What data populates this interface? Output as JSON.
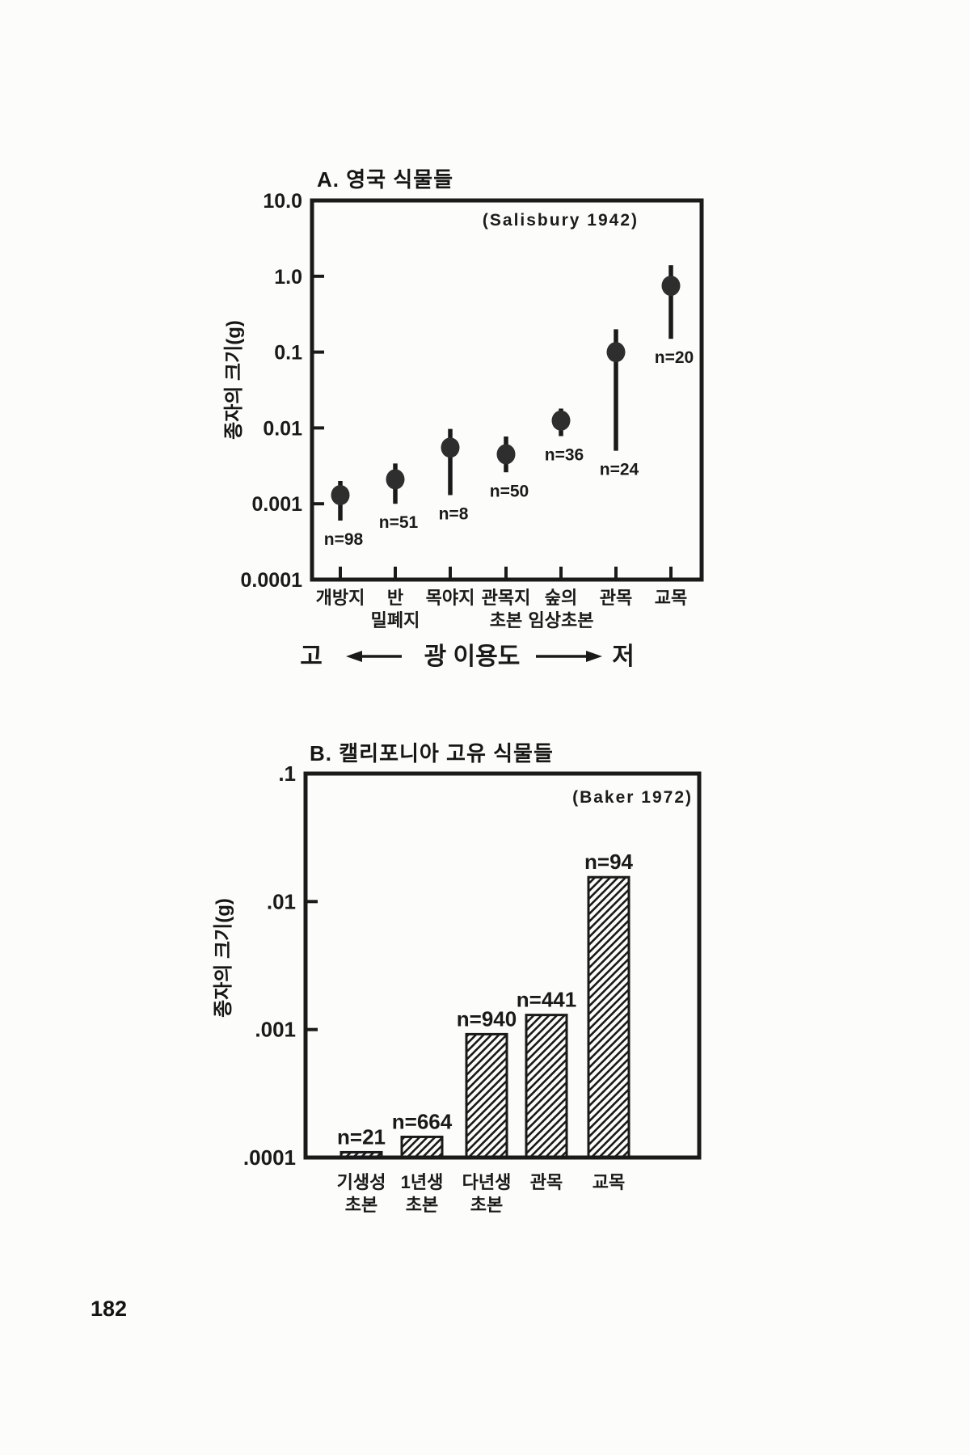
{
  "page": {
    "number": "182",
    "paper_color": "#fcfcfa",
    "ink_color": "#1a1a1a"
  },
  "chart_data": [
    {
      "type": "scatter",
      "panel": "A",
      "title": "A. 영국 식물들",
      "source": "(Salisbury 1942)",
      "ylabel": "종자의 크기(g)",
      "ylim": [
        0.0001,
        10
      ],
      "yscale": "log",
      "grid": false,
      "yticks": [
        {
          "label": "10.0",
          "value": 10
        },
        {
          "label": "1.0",
          "value": 1
        },
        {
          "label": "0.1",
          "value": 0.1
        },
        {
          "label": "0.01",
          "value": 0.01
        },
        {
          "label": "0.001",
          "value": 0.001
        },
        {
          "label": "0.0001",
          "value": 0.0001
        }
      ],
      "categories": [
        [
          "개방지"
        ],
        [
          "반",
          "밀폐지"
        ],
        [
          "목야지"
        ],
        [
          "관목지",
          "초본"
        ],
        [
          "숲의",
          "임상초본"
        ],
        [
          "관목"
        ],
        [
          "교목"
        ]
      ],
      "points": [
        {
          "category": "개방지",
          "n": "n=98",
          "value": 0.0013,
          "low": 0.0006,
          "high": 0.002
        },
        {
          "category": "반 밀폐지",
          "n": "n=51",
          "value": 0.0021,
          "low": 0.001,
          "high": 0.0034
        },
        {
          "category": "목야지",
          "n": "n=8",
          "value": 0.0055,
          "low": 0.0013,
          "high": 0.0097
        },
        {
          "category": "관목지 초본",
          "n": "n=50",
          "value": 0.0045,
          "low": 0.0026,
          "high": 0.0077
        },
        {
          "category": "숲의 임상초본",
          "n": "n=36",
          "value": 0.0125,
          "low": 0.0078,
          "high": 0.018
        },
        {
          "category": "관목",
          "n": "n=24",
          "value": 0.1,
          "low": 0.005,
          "high": 0.2
        },
        {
          "category": "교목",
          "n": "n=20",
          "value": 0.75,
          "low": 0.15,
          "high": 1.4
        }
      ],
      "x_annotation": {
        "high_label": "고",
        "axis_label": "광 이용도",
        "low_label": "저"
      }
    },
    {
      "type": "bar",
      "panel": "B",
      "title": "B. 캘리포니아 고유 식물들",
      "source": "(Baker 1972)",
      "ylabel": "종자의 크기(g)",
      "ylim": [
        0.0001,
        0.1
      ],
      "yscale": "log",
      "grid": false,
      "yticks": [
        {
          "label": ".1",
          "value": 0.1
        },
        {
          "label": ".01",
          "value": 0.01
        },
        {
          "label": ".001",
          "value": 0.001
        },
        {
          "label": ".0001",
          "value": 0.0001
        }
      ],
      "categories": [
        [
          "기생성",
          "초본"
        ],
        [
          "1년생",
          "초본"
        ],
        [
          "다년생",
          "초본"
        ],
        [
          "관목"
        ],
        [
          "교목"
        ]
      ],
      "bars": [
        {
          "category": "기생성 초본",
          "n": "n=21",
          "value": 0.00011
        },
        {
          "category": "1년생 초본",
          "n": "n=664",
          "value": 0.000145
        },
        {
          "category": "다년생 초본",
          "n": "n=940",
          "value": 0.00092
        },
        {
          "category": "관목",
          "n": "n=441",
          "value": 0.0013
        },
        {
          "category": "교목",
          "n": "n=94",
          "value": 0.0155
        }
      ]
    }
  ]
}
